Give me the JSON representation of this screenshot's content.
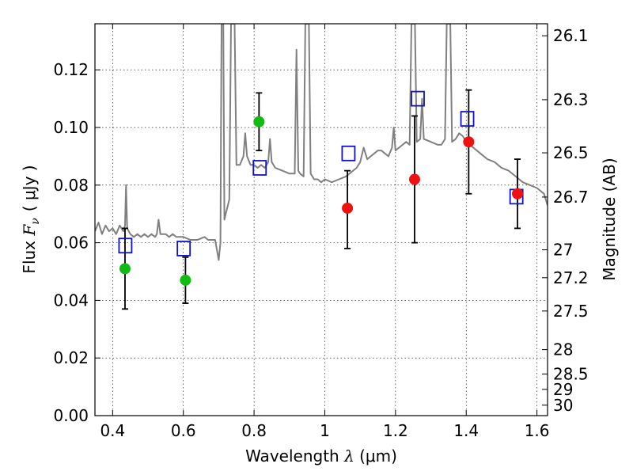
{
  "chart_data": {
    "type": "scatter",
    "xlabel": {
      "prefix": "Wavelength ",
      "symbol": "λ",
      "unit": " (μm)"
    },
    "ylabel": {
      "prefix": "Flux ",
      "symbol": "F",
      "subscript": "ν",
      "unit": "( μJy )"
    },
    "ylabel_right": "Magnitude (AB)",
    "xlim": [
      0.35,
      1.63
    ],
    "ylim": [
      0.0,
      0.136
    ],
    "grid": true,
    "x_ticks": [
      {
        "value": 0.4,
        "label": "0.4"
      },
      {
        "value": 0.6,
        "label": "0.6"
      },
      {
        "value": 0.8,
        "label": "0.8"
      },
      {
        "value": 1.0,
        "label": "1"
      },
      {
        "value": 1.2,
        "label": "1.2"
      },
      {
        "value": 1.4,
        "label": "1.4"
      },
      {
        "value": 1.6,
        "label": "1.6"
      }
    ],
    "y_ticks": [
      {
        "value": 0.0,
        "label": "0.00"
      },
      {
        "value": 0.02,
        "label": "0.02"
      },
      {
        "value": 0.04,
        "label": "0.04"
      },
      {
        "value": 0.06,
        "label": "0.06"
      },
      {
        "value": 0.08,
        "label": "0.08"
      },
      {
        "value": 0.1,
        "label": "0.10"
      },
      {
        "value": 0.12,
        "label": "0.12"
      }
    ],
    "mag_ticks": [
      {
        "mag": 26.1,
        "label": "26.1"
      },
      {
        "mag": 26.3,
        "label": "26.3"
      },
      {
        "mag": 26.5,
        "label": "26.5"
      },
      {
        "mag": 26.7,
        "label": "26.7"
      },
      {
        "mag": 27.0,
        "label": "27"
      },
      {
        "mag": 27.2,
        "label": "27.2"
      },
      {
        "mag": 27.5,
        "label": "27.5"
      },
      {
        "mag": 28.0,
        "label": "28"
      },
      {
        "mag": 28.5,
        "label": "28.5"
      },
      {
        "mag": 29.0,
        "label": "29"
      },
      {
        "mag": 30.0,
        "label": "30"
      }
    ],
    "colors": {
      "template": "#808080",
      "green": "#11bb11",
      "red": "#ee1111",
      "model": "#1111cc",
      "errorbar": "#000000"
    },
    "template_spectrum": [
      [
        0.35,
        0.064
      ],
      [
        0.36,
        0.067
      ],
      [
        0.37,
        0.063
      ],
      [
        0.38,
        0.066
      ],
      [
        0.39,
        0.064
      ],
      [
        0.4,
        0.065
      ],
      [
        0.41,
        0.063
      ],
      [
        0.42,
        0.066
      ],
      [
        0.43,
        0.064
      ],
      [
        0.435,
        0.066
      ],
      [
        0.438,
        0.08
      ],
      [
        0.441,
        0.065
      ],
      [
        0.45,
        0.063
      ],
      [
        0.46,
        0.062
      ],
      [
        0.47,
        0.063
      ],
      [
        0.48,
        0.062
      ],
      [
        0.49,
        0.063
      ],
      [
        0.5,
        0.062
      ],
      [
        0.51,
        0.063
      ],
      [
        0.52,
        0.062
      ],
      [
        0.525,
        0.063
      ],
      [
        0.53,
        0.068
      ],
      [
        0.535,
        0.063
      ],
      [
        0.55,
        0.063
      ],
      [
        0.56,
        0.062
      ],
      [
        0.57,
        0.063
      ],
      [
        0.58,
        0.062
      ],
      [
        0.59,
        0.062
      ],
      [
        0.6,
        0.062
      ],
      [
        0.62,
        0.061
      ],
      [
        0.64,
        0.061
      ],
      [
        0.66,
        0.062
      ],
      [
        0.67,
        0.061
      ],
      [
        0.69,
        0.061
      ],
      [
        0.7,
        0.054
      ],
      [
        0.705,
        0.06
      ],
      [
        0.708,
        0.136
      ],
      [
        0.713,
        0.136
      ],
      [
        0.716,
        0.068
      ],
      [
        0.72,
        0.07
      ],
      [
        0.73,
        0.075
      ],
      [
        0.735,
        0.136
      ],
      [
        0.745,
        0.136
      ],
      [
        0.75,
        0.087
      ],
      [
        0.76,
        0.087
      ],
      [
        0.77,
        0.09
      ],
      [
        0.775,
        0.098
      ],
      [
        0.78,
        0.09
      ],
      [
        0.79,
        0.087
      ],
      [
        0.8,
        0.087
      ],
      [
        0.81,
        0.086
      ],
      [
        0.82,
        0.087
      ],
      [
        0.83,
        0.086
      ],
      [
        0.84,
        0.088
      ],
      [
        0.845,
        0.096
      ],
      [
        0.85,
        0.088
      ],
      [
        0.86,
        0.086
      ],
      [
        0.88,
        0.085
      ],
      [
        0.9,
        0.084
      ],
      [
        0.91,
        0.084
      ],
      [
        0.915,
        0.084
      ],
      [
        0.92,
        0.127
      ],
      [
        0.925,
        0.085
      ],
      [
        0.93,
        0.084
      ],
      [
        0.94,
        0.083
      ],
      [
        0.945,
        0.136
      ],
      [
        0.955,
        0.136
      ],
      [
        0.96,
        0.084
      ],
      [
        0.97,
        0.082
      ],
      [
        0.98,
        0.082
      ],
      [
        0.99,
        0.081
      ],
      [
        1.0,
        0.082
      ],
      [
        1.02,
        0.081
      ],
      [
        1.04,
        0.082
      ],
      [
        1.06,
        0.083
      ],
      [
        1.08,
        0.085
      ],
      [
        1.09,
        0.086
      ],
      [
        1.1,
        0.088
      ],
      [
        1.11,
        0.093
      ],
      [
        1.12,
        0.089
      ],
      [
        1.13,
        0.09
      ],
      [
        1.14,
        0.091
      ],
      [
        1.15,
        0.092
      ],
      [
        1.16,
        0.092
      ],
      [
        1.17,
        0.091
      ],
      [
        1.18,
        0.09
      ],
      [
        1.19,
        0.093
      ],
      [
        1.195,
        0.1
      ],
      [
        1.2,
        0.092
      ],
      [
        1.21,
        0.093
      ],
      [
        1.22,
        0.094
      ],
      [
        1.23,
        0.095
      ],
      [
        1.24,
        0.094
      ],
      [
        1.245,
        0.136
      ],
      [
        1.255,
        0.136
      ],
      [
        1.26,
        0.095
      ],
      [
        1.27,
        0.096
      ],
      [
        1.275,
        0.11
      ],
      [
        1.28,
        0.096
      ],
      [
        1.3,
        0.095
      ],
      [
        1.32,
        0.094
      ],
      [
        1.33,
        0.094
      ],
      [
        1.34,
        0.096
      ],
      [
        1.345,
        0.136
      ],
      [
        1.355,
        0.136
      ],
      [
        1.36,
        0.095
      ],
      [
        1.37,
        0.096
      ],
      [
        1.38,
        0.098
      ],
      [
        1.39,
        0.097
      ],
      [
        1.4,
        0.095
      ],
      [
        1.42,
        0.093
      ],
      [
        1.44,
        0.091
      ],
      [
        1.46,
        0.089
      ],
      [
        1.48,
        0.088
      ],
      [
        1.5,
        0.086
      ],
      [
        1.52,
        0.085
      ],
      [
        1.54,
        0.083
      ],
      [
        1.56,
        0.081
      ],
      [
        1.58,
        0.08
      ],
      [
        1.6,
        0.079
      ],
      [
        1.62,
        0.077
      ],
      [
        1.63,
        0.073
      ]
    ],
    "observed_green": [
      {
        "x": 0.435,
        "y": 0.051,
        "err_low": 0.037,
        "err_high": 0.065
      },
      {
        "x": 0.606,
        "y": 0.047,
        "err_low": 0.039,
        "err_high": 0.055
      },
      {
        "x": 0.814,
        "y": 0.102,
        "err_low": 0.092,
        "err_high": 0.112
      }
    ],
    "observed_red": [
      {
        "x": 1.064,
        "y": 0.072,
        "err_low": 0.058,
        "err_high": 0.085
      },
      {
        "x": 1.254,
        "y": 0.082,
        "err_low": 0.06,
        "err_high": 0.104
      },
      {
        "x": 1.407,
        "y": 0.095,
        "err_low": 0.077,
        "err_high": 0.113
      },
      {
        "x": 1.545,
        "y": 0.077,
        "err_low": 0.065,
        "err_high": 0.089
      }
    ],
    "model_squares": [
      {
        "x": 0.436,
        "y": 0.059
      },
      {
        "x": 0.601,
        "y": 0.058
      },
      {
        "x": 0.816,
        "y": 0.086
      },
      {
        "x": 1.067,
        "y": 0.091
      },
      {
        "x": 1.263,
        "y": 0.11
      },
      {
        "x": 1.403,
        "y": 0.103
      },
      {
        "x": 1.542,
        "y": 0.076
      }
    ]
  }
}
